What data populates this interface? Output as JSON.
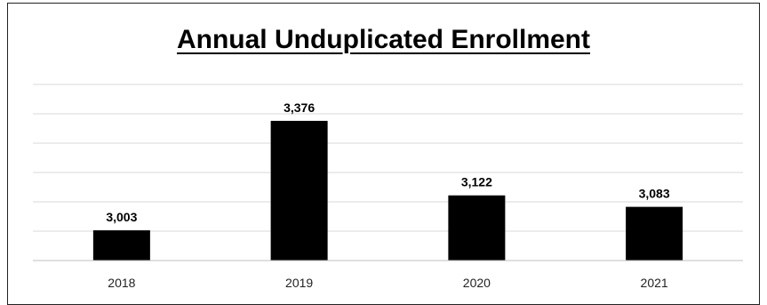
{
  "chart_data": {
    "type": "bar",
    "title": "Annual Unduplicated Enrollment",
    "categories": [
      "2018",
      "2019",
      "2020",
      "2021"
    ],
    "values": [
      3003,
      3376,
      3122,
      3083
    ],
    "value_labels": [
      "3,003",
      "3,376",
      "3,122",
      "3,083"
    ],
    "ylim": [
      2900,
      3500
    ],
    "xlabel": "",
    "ylabel": "",
    "grid": true,
    "y_axis_visible": false,
    "bar_color": "#000000",
    "grid_color": "#d9d9d9"
  }
}
